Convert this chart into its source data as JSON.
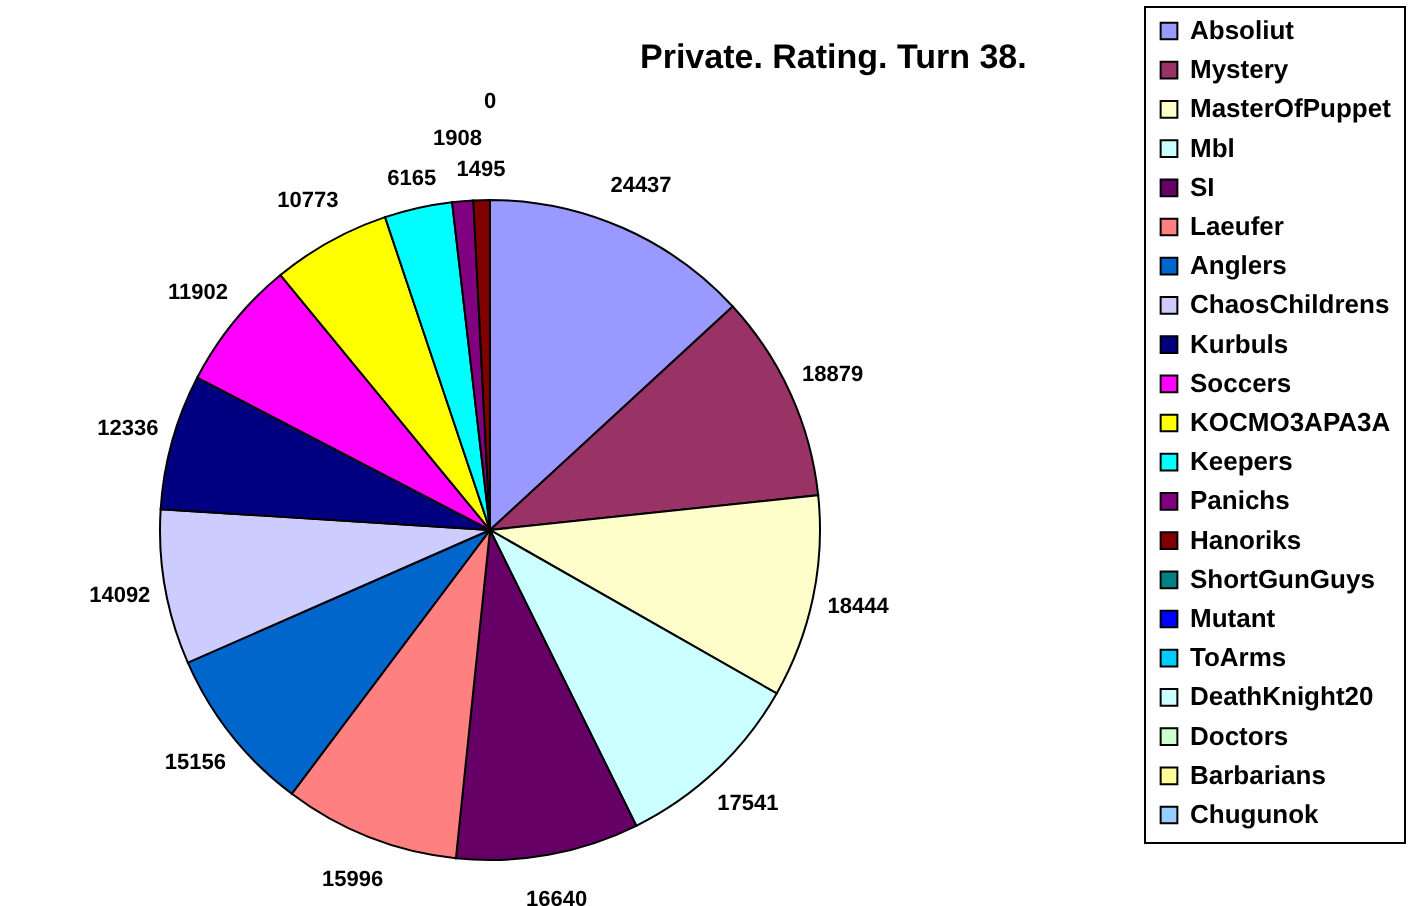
{
  "chart_data": {
    "type": "pie",
    "title": "Private. Rating. Turn 38.",
    "categories": [
      "Absoliut",
      "Mystery",
      "MasterOfPuppet",
      "Mbl",
      "SI",
      "Laeufer",
      "Anglers",
      "ChaosChildrens",
      "Kurbuls",
      "Soccers",
      "KOCMO3APA3A",
      "Keepers",
      "Panichs",
      "Hanoriks",
      "ShortGunGuys",
      "Mutant",
      "ToArms",
      "DeathKnight20",
      "Doctors",
      "Barbarians",
      "Chugunok"
    ],
    "values": [
      24437,
      18879,
      18444,
      17541,
      16640,
      15996,
      15156,
      14092,
      12336,
      11902,
      10773,
      6165,
      1908,
      1495,
      0,
      0,
      0,
      0,
      0,
      0,
      0
    ],
    "value_labels": [
      "24437",
      "18879",
      "18444",
      "17541",
      "16640",
      "15996",
      "15156",
      "14092",
      "12336",
      "11902",
      "10773",
      "6165",
      "1908",
      "1495",
      null,
      null,
      null,
      null,
      null,
      null,
      "0"
    ],
    "colors": [
      "#9999ff",
      "#993366",
      "#ffffcc",
      "#ccffff",
      "#660066",
      "#ff8080",
      "#0066cc",
      "#ccccff",
      "#000080",
      "#ff00ff",
      "#ffff00",
      "#00ffff",
      "#800080",
      "#800000",
      "#008080",
      "#0000ff",
      "#00ccff",
      "#ccffff",
      "#ccffcc",
      "#ffff99",
      "#99ccff"
    ],
    "legend": "right"
  }
}
